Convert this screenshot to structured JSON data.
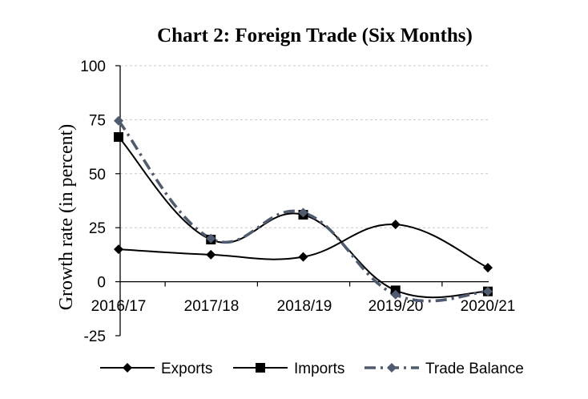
{
  "chart_data": {
    "type": "line",
    "title": "Chart 2: Foreign Trade (Six Months)",
    "xlabel": "",
    "ylabel": "Growth rate (in percent)",
    "categories": [
      "2016/17",
      "2017/18",
      "2018/19",
      "2019/20",
      "2020/21"
    ],
    "ylim": [
      -25,
      100
    ],
    "yticks": [
      -25,
      0,
      25,
      50,
      75,
      100
    ],
    "ytick_labels": [
      "-25",
      "0",
      "25",
      "50",
      "75",
      "100"
    ],
    "grid": "horizontal dotted",
    "legend_position": "bottom",
    "series": [
      {
        "name": "Exports",
        "values": [
          15,
          12.5,
          11.5,
          26.5,
          6.5
        ],
        "color": "#000000",
        "marker": "diamond",
        "style": "solid"
      },
      {
        "name": "Imports",
        "values": [
          67,
          19.5,
          31,
          -4,
          -4.5
        ],
        "color": "#000000",
        "marker": "square",
        "style": "solid"
      },
      {
        "name": "Trade Balance",
        "values": [
          74.5,
          20,
          32,
          -6,
          -4.5
        ],
        "color": "#4f5b6e",
        "marker": "diamond",
        "style": "dashdot"
      }
    ]
  }
}
